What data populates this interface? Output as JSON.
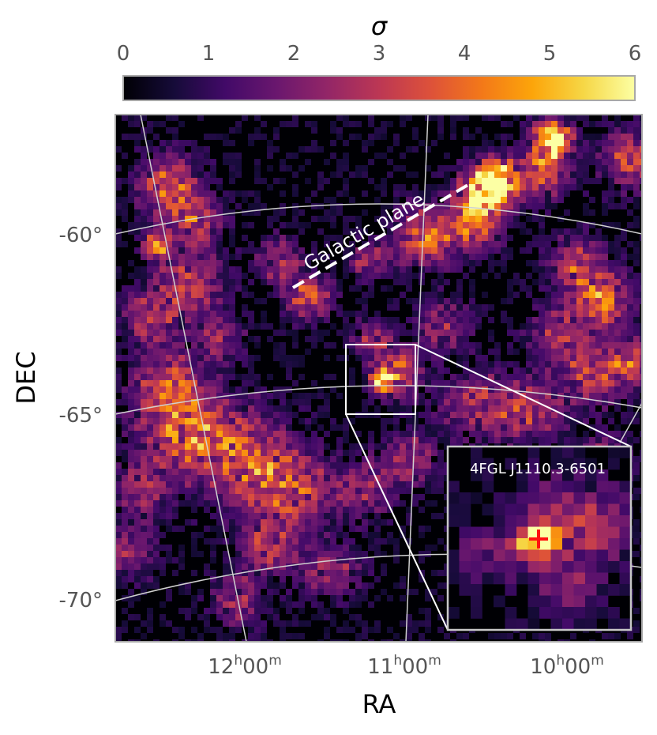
{
  "chart_data": {
    "type": "heatmap",
    "colorbar": {
      "label": "σ",
      "ticks": [
        "0",
        "1",
        "2",
        "3",
        "4",
        "5",
        "6"
      ],
      "range": [
        0,
        6
      ],
      "colormap": "inferno",
      "position": "top"
    },
    "xlabel": "RA",
    "ylabel": "DEC",
    "x_ticks": [
      {
        "h": "12",
        "m": "00"
      },
      {
        "h": "11",
        "m": "00"
      },
      {
        "h": "10",
        "m": "00"
      }
    ],
    "y_ticks": [
      "-60°",
      "-65°",
      "-70°"
    ],
    "annotations": {
      "galactic_plane": "Galactic plane",
      "inset_source": "4FGL J1110.3-6501"
    },
    "colors": {
      "frame": "#a8a8a8",
      "grid": "#d0d0d0",
      "marker": "#ff1010",
      "annotation": "#ffffff"
    }
  }
}
